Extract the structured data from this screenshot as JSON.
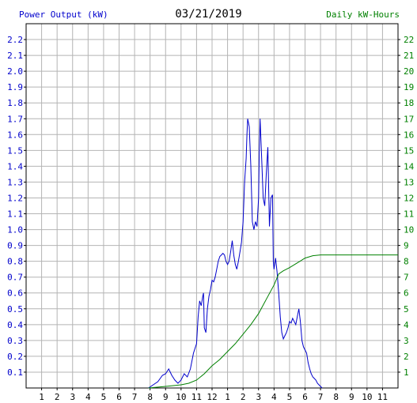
{
  "chart_data": {
    "type": "line",
    "title": "03/21/2019",
    "ylabel_left": "Power Output (kW)",
    "ylabel_right": "Daily kW-Hours",
    "left_axis": {
      "min": 0,
      "max": 2.3,
      "ticks": [
        "0.1",
        "0.2",
        "0.3",
        "0.4",
        "0.5",
        "0.6",
        "0.7",
        "0.8",
        "0.9",
        "1.0",
        "1.1",
        "1.2",
        "1.3",
        "1.4",
        "1.5",
        "1.6",
        "1.7",
        "1.8",
        "1.9",
        "2.0",
        "2.1",
        "2.2"
      ]
    },
    "right_axis": {
      "min": 0,
      "max": 23,
      "ticks": [
        "1",
        "2",
        "3",
        "4",
        "5",
        "6",
        "7",
        "8",
        "9",
        "10",
        "11",
        "12",
        "13",
        "14",
        "15",
        "16",
        "17",
        "18",
        "19",
        "20",
        "21",
        "22"
      ]
    },
    "x_axis": {
      "min": 0,
      "max": 24,
      "ticks": [
        "1",
        "2",
        "3",
        "4",
        "5",
        "6",
        "7",
        "8",
        "9",
        "10",
        "11",
        "12",
        "1",
        "2",
        "3",
        "4",
        "5",
        "6",
        "7",
        "8",
        "9",
        "10",
        "11"
      ]
    },
    "grid": true,
    "series": [
      {
        "axis": "left",
        "color": "#0000cc",
        "points": [
          [
            7.9,
            0
          ],
          [
            8.2,
            0.02
          ],
          [
            8.5,
            0.04
          ],
          [
            8.8,
            0.08
          ],
          [
            9.0,
            0.09
          ],
          [
            9.2,
            0.12
          ],
          [
            9.4,
            0.08
          ],
          [
            9.6,
            0.05
          ],
          [
            9.8,
            0.03
          ],
          [
            10.0,
            0.05
          ],
          [
            10.2,
            0.09
          ],
          [
            10.4,
            0.07
          ],
          [
            10.6,
            0.12
          ],
          [
            10.8,
            0.22
          ],
          [
            11.0,
            0.28
          ],
          [
            11.1,
            0.45
          ],
          [
            11.2,
            0.55
          ],
          [
            11.3,
            0.52
          ],
          [
            11.4,
            0.58
          ],
          [
            11.45,
            0.6
          ],
          [
            11.5,
            0.38
          ],
          [
            11.6,
            0.35
          ],
          [
            11.7,
            0.5
          ],
          [
            11.8,
            0.58
          ],
          [
            11.9,
            0.62
          ],
          [
            12.0,
            0.68
          ],
          [
            12.1,
            0.67
          ],
          [
            12.2,
            0.7
          ],
          [
            12.3,
            0.75
          ],
          [
            12.4,
            0.8
          ],
          [
            12.5,
            0.83
          ],
          [
            12.6,
            0.84
          ],
          [
            12.7,
            0.85
          ],
          [
            12.8,
            0.84
          ],
          [
            12.9,
            0.8
          ],
          [
            13.0,
            0.78
          ],
          [
            13.1,
            0.8
          ],
          [
            13.2,
            0.86
          ],
          [
            13.3,
            0.93
          ],
          [
            13.4,
            0.84
          ],
          [
            13.5,
            0.78
          ],
          [
            13.6,
            0.75
          ],
          [
            13.7,
            0.8
          ],
          [
            13.8,
            0.86
          ],
          [
            13.9,
            0.92
          ],
          [
            14.0,
            1.05
          ],
          [
            14.1,
            1.3
          ],
          [
            14.2,
            1.45
          ],
          [
            14.25,
            1.6
          ],
          [
            14.3,
            1.7
          ],
          [
            14.4,
            1.65
          ],
          [
            14.5,
            1.4
          ],
          [
            14.6,
            1.05
          ],
          [
            14.7,
            1.0
          ],
          [
            14.8,
            1.05
          ],
          [
            14.9,
            1.02
          ],
          [
            15.0,
            1.2
          ],
          [
            15.05,
            1.5
          ],
          [
            15.1,
            1.7
          ],
          [
            15.2,
            1.45
          ],
          [
            15.3,
            1.2
          ],
          [
            15.4,
            1.15
          ],
          [
            15.5,
            1.35
          ],
          [
            15.6,
            1.52
          ],
          [
            15.7,
            1.02
          ],
          [
            15.8,
            1.2
          ],
          [
            15.9,
            1.22
          ],
          [
            15.95,
            0.8
          ],
          [
            16.0,
            0.75
          ],
          [
            16.1,
            0.82
          ],
          [
            16.2,
            0.73
          ],
          [
            16.3,
            0.6
          ],
          [
            16.4,
            0.45
          ],
          [
            16.5,
            0.35
          ],
          [
            16.6,
            0.31
          ],
          [
            16.7,
            0.33
          ],
          [
            16.8,
            0.35
          ],
          [
            16.9,
            0.38
          ],
          [
            17.0,
            0.42
          ],
          [
            17.1,
            0.41
          ],
          [
            17.2,
            0.44
          ],
          [
            17.3,
            0.42
          ],
          [
            17.4,
            0.4
          ],
          [
            17.5,
            0.45
          ],
          [
            17.6,
            0.5
          ],
          [
            17.7,
            0.42
          ],
          [
            17.8,
            0.3
          ],
          [
            17.9,
            0.26
          ],
          [
            18.0,
            0.24
          ],
          [
            18.1,
            0.22
          ],
          [
            18.2,
            0.16
          ],
          [
            18.3,
            0.12
          ],
          [
            18.4,
            0.09
          ],
          [
            18.5,
            0.07
          ],
          [
            18.6,
            0.06
          ],
          [
            18.7,
            0.05
          ],
          [
            18.8,
            0.03
          ],
          [
            18.9,
            0.02
          ],
          [
            19.0,
            0.01
          ],
          [
            19.1,
            0
          ]
        ]
      },
      {
        "axis": "right",
        "color": "#008000",
        "points": [
          [
            7.9,
            0
          ],
          [
            9,
            0.1
          ],
          [
            10,
            0.2
          ],
          [
            10.5,
            0.3
          ],
          [
            11,
            0.5
          ],
          [
            11.5,
            0.9
          ],
          [
            12,
            1.4
          ],
          [
            12.5,
            1.8
          ],
          [
            13,
            2.3
          ],
          [
            13.5,
            2.8
          ],
          [
            14,
            3.4
          ],
          [
            14.5,
            4.0
          ],
          [
            15,
            4.7
          ],
          [
            15.5,
            5.6
          ],
          [
            16,
            6.5
          ],
          [
            16.3,
            7.2
          ],
          [
            16.6,
            7.4
          ],
          [
            17,
            7.6
          ],
          [
            17.5,
            7.9
          ],
          [
            18,
            8.2
          ],
          [
            18.5,
            8.35
          ],
          [
            19,
            8.4
          ],
          [
            20,
            8.4
          ],
          [
            21,
            8.4
          ],
          [
            22,
            8.4
          ],
          [
            23,
            8.4
          ],
          [
            24,
            8.4
          ]
        ]
      }
    ]
  }
}
